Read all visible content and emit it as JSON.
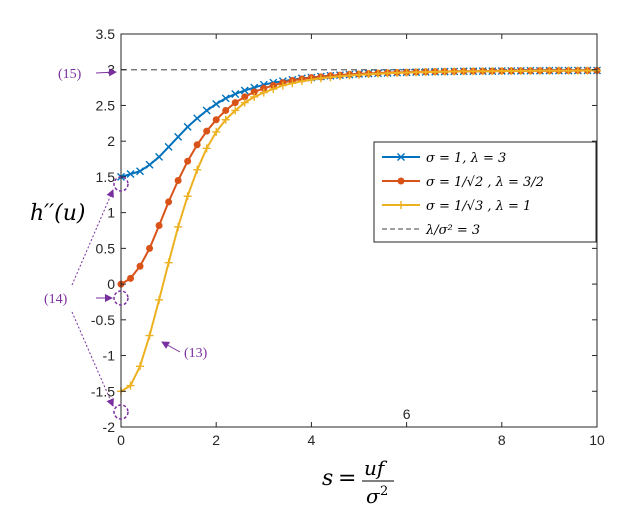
{
  "chart_data": {
    "type": "line",
    "xlabel": "s = uf/σ²",
    "ylabel": "h''(u)",
    "xlim": [
      0,
      10
    ],
    "ylim": [
      -2,
      3.5
    ],
    "x_ticks": [
      "0",
      "2",
      "4",
      "6",
      "8",
      "10"
    ],
    "y_ticks": [
      "-2",
      "-1.5",
      "-1",
      "-0.5",
      "0",
      "0.5",
      "1",
      "1.5",
      "2",
      "2.5",
      "3",
      "3.5"
    ],
    "grid": false,
    "legend_position": "right",
    "series": [
      {
        "name": "σ = 1, λ = 3",
        "color": "#0072BD",
        "marker": "x",
        "x": [
          0,
          0.2,
          0.4,
          0.6,
          0.8,
          1.0,
          1.2,
          1.4,
          1.6,
          1.8,
          2.0,
          2.2,
          2.4,
          2.6,
          2.8,
          3.0,
          3.2,
          3.4,
          3.6,
          3.8,
          4.0,
          4.2,
          4.4,
          4.6,
          4.8,
          5.0,
          5.2,
          5.4,
          5.6,
          5.8,
          6.0,
          6.2,
          6.4,
          6.6,
          6.8,
          7.0,
          7.2,
          7.4,
          7.6,
          7.8,
          8.0,
          8.2,
          8.4,
          8.6,
          8.8,
          9.0,
          9.2,
          9.4,
          9.6,
          9.8,
          10.0
        ],
        "y": [
          1.5,
          1.54,
          1.58,
          1.67,
          1.78,
          1.92,
          2.06,
          2.2,
          2.32,
          2.43,
          2.52,
          2.6,
          2.66,
          2.71,
          2.75,
          2.79,
          2.82,
          2.84,
          2.86,
          2.88,
          2.89,
          2.905,
          2.915,
          2.925,
          2.932,
          2.94,
          2.945,
          2.95,
          2.955,
          2.96,
          2.963,
          2.966,
          2.969,
          2.972,
          2.974,
          2.976,
          2.978,
          2.979,
          2.98,
          2.981,
          2.982,
          2.983,
          2.984,
          2.985,
          2.986,
          2.987,
          2.988,
          2.988,
          2.989,
          2.99,
          2.99
        ]
      },
      {
        "name": "σ = 1/√2 , λ = 3/2",
        "color": "#D95319",
        "marker": "o",
        "x": [
          0,
          0.2,
          0.4,
          0.6,
          0.8,
          1.0,
          1.2,
          1.4,
          1.6,
          1.8,
          2.0,
          2.2,
          2.4,
          2.6,
          2.8,
          3.0,
          3.2,
          3.4,
          3.6,
          3.8,
          4.0,
          4.2,
          4.4,
          4.6,
          4.8,
          5.0,
          5.2,
          5.4,
          5.6,
          5.8,
          6.0,
          6.2,
          6.4,
          6.6,
          6.8,
          7.0,
          7.2,
          7.4,
          7.6,
          7.8,
          8.0,
          8.2,
          8.4,
          8.6,
          8.8,
          9.0,
          9.2,
          9.4,
          9.6,
          9.8,
          10.0
        ],
        "y": [
          0,
          0.08,
          0.25,
          0.5,
          0.82,
          1.15,
          1.45,
          1.72,
          1.95,
          2.14,
          2.3,
          2.43,
          2.54,
          2.62,
          2.69,
          2.74,
          2.78,
          2.82,
          2.85,
          2.87,
          2.89,
          2.9,
          2.915,
          2.925,
          2.935,
          2.94,
          2.948,
          2.953,
          2.958,
          2.962,
          2.965,
          2.968,
          2.971,
          2.973,
          2.975,
          2.977,
          2.979,
          2.98,
          2.981,
          2.982,
          2.983,
          2.984,
          2.985,
          2.986,
          2.987,
          2.987,
          2.988,
          2.988,
          2.989,
          2.989,
          2.99
        ]
      },
      {
        "name": "σ = 1/√3 , λ = 1",
        "color": "#EDB120",
        "marker": "+",
        "x": [
          0,
          0.2,
          0.4,
          0.6,
          0.8,
          1.0,
          1.2,
          1.4,
          1.6,
          1.8,
          2.0,
          2.2,
          2.4,
          2.6,
          2.8,
          3.0,
          3.2,
          3.4,
          3.6,
          3.8,
          4.0,
          4.2,
          4.4,
          4.6,
          4.8,
          5.0,
          5.2,
          5.4,
          5.6,
          5.8,
          6.0,
          6.2,
          6.4,
          6.6,
          6.8,
          7.0,
          7.2,
          7.4,
          7.6,
          7.8,
          8.0,
          8.2,
          8.4,
          8.6,
          8.8,
          9.0,
          9.2,
          9.4,
          9.6,
          9.8,
          10.0
        ],
        "y": [
          -1.5,
          -1.42,
          -1.15,
          -0.72,
          -0.22,
          0.3,
          0.8,
          1.23,
          1.6,
          1.9,
          2.13,
          2.3,
          2.43,
          2.54,
          2.62,
          2.68,
          2.73,
          2.78,
          2.81,
          2.84,
          2.86,
          2.88,
          2.895,
          2.91,
          2.92,
          2.93,
          2.938,
          2.945,
          2.95,
          2.955,
          2.96,
          2.964,
          2.967,
          2.97,
          2.972,
          2.975,
          2.977,
          2.978,
          2.979,
          2.98,
          2.981,
          2.982,
          2.983,
          2.984,
          2.985,
          2.986,
          2.987,
          2.987,
          2.988,
          2.988,
          2.99
        ]
      }
    ],
    "reference_line": {
      "name": "λ/σ² = 3",
      "y": 3,
      "color": "#666666",
      "style": "dashed"
    },
    "annotations": [
      {
        "text": "(15)",
        "x": -0.4,
        "y": 3
      },
      {
        "text": "(14)",
        "x": -0.5,
        "y": 0
      },
      {
        "text": "(13)",
        "x": 1.0,
        "y": -1.05
      }
    ]
  },
  "colors": {
    "annotation": "#7a2f9f",
    "axis": "#262626"
  }
}
